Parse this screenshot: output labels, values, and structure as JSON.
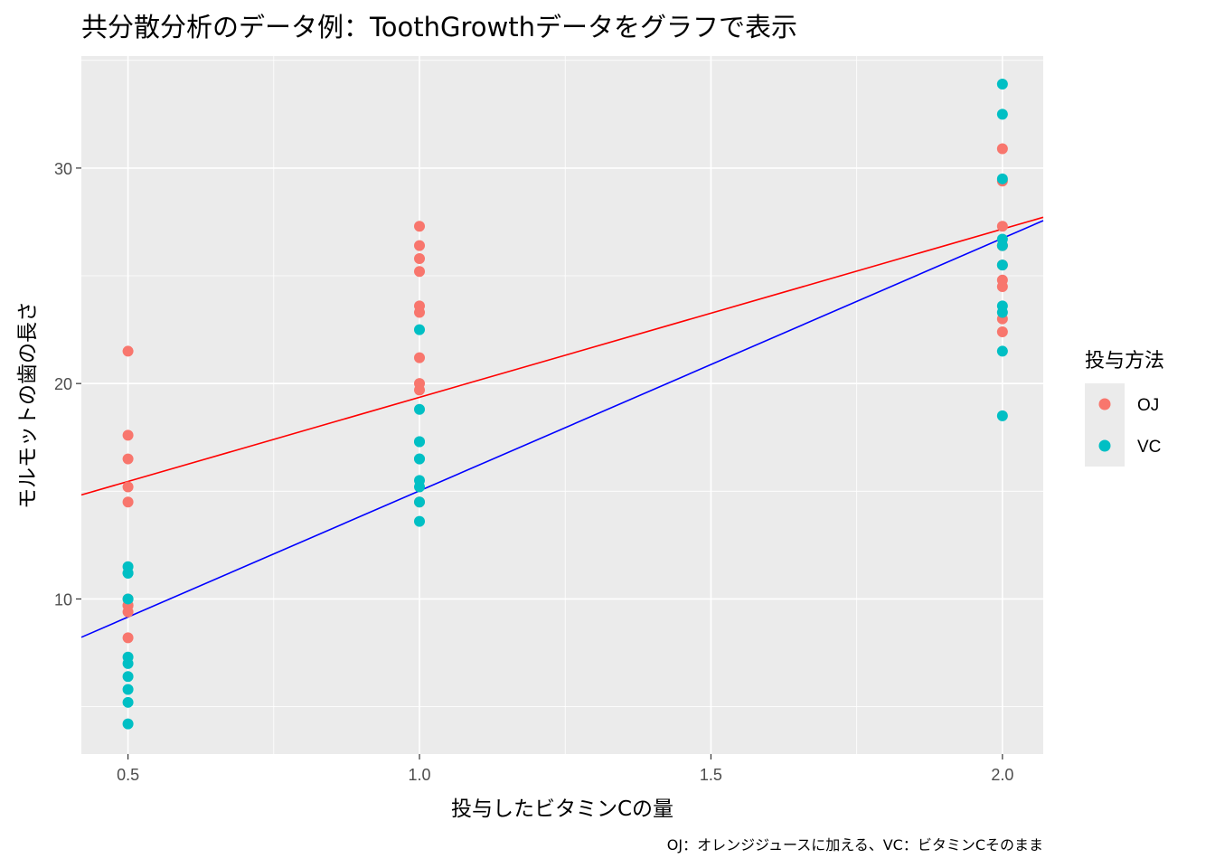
{
  "chart_data": {
    "type": "scatter",
    "title": "共分散分析のデータ例：ToothGrowthデータをグラフで表示",
    "xlabel": "投与したビタミンCの量",
    "ylabel": "モルモットの歯の長さ",
    "caption": "OJ：オレンジジュースに加える、VC：ビタミンCそのまま",
    "xlim": [
      0.42,
      2.07
    ],
    "ylim": [
      2.8,
      35.2
    ],
    "x_ticks": [
      0.5,
      1.0,
      1.5,
      2.0
    ],
    "x_tick_labels": [
      "0.5",
      "1.0",
      "1.5",
      "2.0"
    ],
    "y_ticks": [
      10,
      20,
      30
    ],
    "y_tick_labels": [
      "10",
      "20",
      "30"
    ],
    "grid": true,
    "legend": {
      "title": "投与方法",
      "position": "right"
    },
    "series": [
      {
        "name": "OJ",
        "color": "#F8766D",
        "points": [
          [
            0.5,
            15.2
          ],
          [
            0.5,
            21.5
          ],
          [
            0.5,
            17.6
          ],
          [
            0.5,
            9.7
          ],
          [
            0.5,
            14.5
          ],
          [
            0.5,
            10.0
          ],
          [
            0.5,
            8.2
          ],
          [
            0.5,
            9.4
          ],
          [
            0.5,
            16.5
          ],
          [
            0.5,
            9.7
          ],
          [
            1.0,
            19.7
          ],
          [
            1.0,
            23.3
          ],
          [
            1.0,
            23.6
          ],
          [
            1.0,
            26.4
          ],
          [
            1.0,
            20.0
          ],
          [
            1.0,
            25.2
          ],
          [
            1.0,
            25.8
          ],
          [
            1.0,
            21.2
          ],
          [
            1.0,
            14.5
          ],
          [
            1.0,
            27.3
          ],
          [
            2.0,
            25.5
          ],
          [
            2.0,
            26.4
          ],
          [
            2.0,
            22.4
          ],
          [
            2.0,
            24.5
          ],
          [
            2.0,
            24.8
          ],
          [
            2.0,
            30.9
          ],
          [
            2.0,
            26.4
          ],
          [
            2.0,
            27.3
          ],
          [
            2.0,
            29.4
          ],
          [
            2.0,
            23.0
          ]
        ]
      },
      {
        "name": "VC",
        "color": "#00BFC4",
        "points": [
          [
            0.5,
            4.2
          ],
          [
            0.5,
            11.5
          ],
          [
            0.5,
            7.3
          ],
          [
            0.5,
            5.8
          ],
          [
            0.5,
            6.4
          ],
          [
            0.5,
            10.0
          ],
          [
            0.5,
            11.2
          ],
          [
            0.5,
            11.2
          ],
          [
            0.5,
            5.2
          ],
          [
            0.5,
            7.0
          ],
          [
            1.0,
            16.5
          ],
          [
            1.0,
            16.5
          ],
          [
            1.0,
            15.2
          ],
          [
            1.0,
            17.3
          ],
          [
            1.0,
            22.5
          ],
          [
            1.0,
            17.3
          ],
          [
            1.0,
            13.6
          ],
          [
            1.0,
            14.5
          ],
          [
            1.0,
            18.8
          ],
          [
            1.0,
            15.5
          ],
          [
            2.0,
            23.6
          ],
          [
            2.0,
            18.5
          ],
          [
            2.0,
            33.9
          ],
          [
            2.0,
            25.5
          ],
          [
            2.0,
            26.4
          ],
          [
            2.0,
            32.5
          ],
          [
            2.0,
            26.7
          ],
          [
            2.0,
            21.5
          ],
          [
            2.0,
            23.3
          ],
          [
            2.0,
            29.5
          ]
        ]
      }
    ],
    "fit_lines": [
      {
        "series": "OJ",
        "color": "#FF0000",
        "intercept": 11.55,
        "slope": 7.81
      },
      {
        "series": "VC",
        "color": "#0000FF",
        "intercept": 3.3,
        "slope": 11.72
      }
    ]
  }
}
